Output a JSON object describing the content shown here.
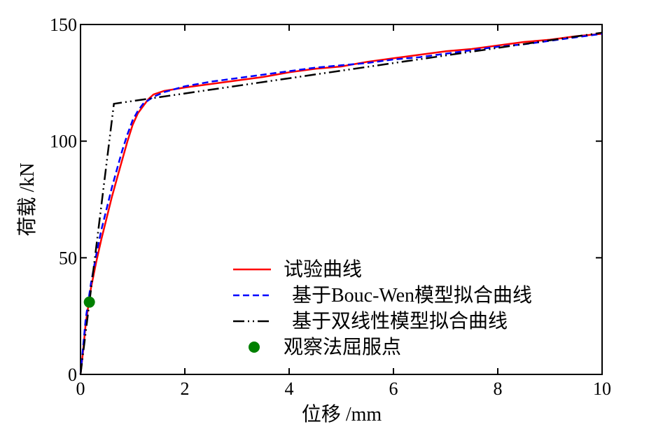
{
  "chart_data": {
    "type": "line",
    "xlabel": "位移 /mm",
    "ylabel": "荷载 /kN",
    "xlim": [
      0,
      10
    ],
    "ylim": [
      0,
      150
    ],
    "x_ticks": [
      {
        "value": 0,
        "label": "0"
      },
      {
        "value": 2,
        "label": "2"
      },
      {
        "value": 4,
        "label": "4"
      },
      {
        "value": 6,
        "label": "6"
      },
      {
        "value": 8,
        "label": "8"
      },
      {
        "value": 10,
        "label": "10"
      }
    ],
    "y_ticks": [
      {
        "value": 0,
        "label": "0"
      },
      {
        "value": 50,
        "label": "50"
      },
      {
        "value": 100,
        "label": "100"
      },
      {
        "value": 150,
        "label": "150"
      }
    ],
    "grid": false,
    "legend_position": "bottom-right",
    "series": [
      {
        "name": "试验曲线",
        "color": "#ff0000",
        "style": "solid",
        "points": [
          [
            0,
            0
          ],
          [
            0.05,
            10
          ],
          [
            0.1,
            22
          ],
          [
            0.2,
            37
          ],
          [
            0.3,
            48
          ],
          [
            0.4,
            58
          ],
          [
            0.5,
            67
          ],
          [
            0.6,
            76
          ],
          [
            0.7,
            84
          ],
          [
            0.8,
            92
          ],
          [
            0.9,
            100
          ],
          [
            1.0,
            107
          ],
          [
            1.1,
            112
          ],
          [
            1.2,
            115
          ],
          [
            1.3,
            118
          ],
          [
            1.4,
            120
          ],
          [
            1.6,
            121.5
          ],
          [
            2.0,
            123
          ],
          [
            2.5,
            124.5
          ],
          [
            3.0,
            126
          ],
          [
            3.5,
            127.5
          ],
          [
            4.0,
            129.5
          ],
          [
            4.5,
            131
          ],
          [
            5.0,
            132
          ],
          [
            5.5,
            134
          ],
          [
            6.0,
            135.5
          ],
          [
            6.5,
            137
          ],
          [
            7.0,
            138.5
          ],
          [
            7.5,
            139.5
          ],
          [
            8.0,
            141
          ],
          [
            8.5,
            142.5
          ],
          [
            9.0,
            143.5
          ],
          [
            9.5,
            145
          ],
          [
            10.0,
            146
          ]
        ]
      },
      {
        "name": "基于Bouc-Wen模型拟合曲线",
        "color": "#0000ff",
        "style": "dashed",
        "points": [
          [
            0,
            0
          ],
          [
            0.1,
            24
          ],
          [
            0.2,
            39
          ],
          [
            0.3,
            51
          ],
          [
            0.4,
            62
          ],
          [
            0.5,
            71
          ],
          [
            0.6,
            80
          ],
          [
            0.7,
            88
          ],
          [
            0.8,
            96
          ],
          [
            0.9,
            103
          ],
          [
            1.0,
            109
          ],
          [
            1.1,
            113
          ],
          [
            1.2,
            116
          ],
          [
            1.4,
            119
          ],
          [
            1.6,
            121
          ],
          [
            2.0,
            123.5
          ],
          [
            2.5,
            125.5
          ],
          [
            3.0,
            127
          ],
          [
            3.5,
            128.5
          ],
          [
            4.0,
            130
          ],
          [
            4.5,
            131.5
          ],
          [
            5.0,
            132.5
          ],
          [
            5.5,
            133.5
          ],
          [
            6.0,
            135
          ],
          [
            6.5,
            136
          ],
          [
            7.0,
            137.5
          ],
          [
            7.5,
            139
          ],
          [
            8.0,
            140.5
          ],
          [
            8.5,
            141.5
          ],
          [
            9.0,
            143
          ],
          [
            9.5,
            144.5
          ],
          [
            10.0,
            146
          ]
        ]
      },
      {
        "name": "基于双线性模型拟合曲线",
        "color": "#000000",
        "style": "dashdotdot",
        "points": [
          [
            0,
            0
          ],
          [
            0.64,
            116
          ],
          [
            10.0,
            146.5
          ]
        ]
      },
      {
        "name": "观察法屈服点",
        "color": "#008000",
        "style": "marker",
        "points": [
          [
            0.17,
            31
          ]
        ]
      }
    ]
  }
}
